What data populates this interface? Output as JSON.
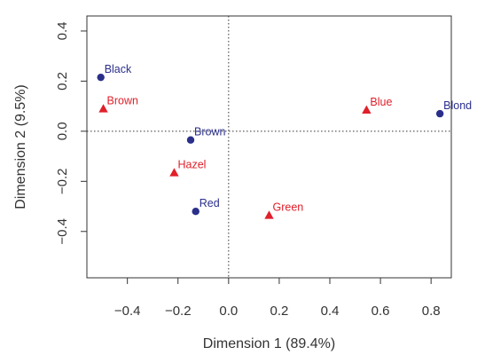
{
  "chart_data": {
    "type": "scatter",
    "xlabel": "Dimension 1 (89.4%)",
    "ylabel": "Dimension 2 (9.5%)",
    "xlim": [
      -0.56,
      0.88
    ],
    "ylim": [
      -0.585,
      0.46
    ],
    "x_ticks": [
      -0.4,
      -0.2,
      0.0,
      0.2,
      0.4,
      0.6,
      0.8
    ],
    "x_tick_labels": [
      "−0.4",
      "−0.2",
      "0.0",
      "0.2",
      "0.4",
      "0.6",
      "0.8"
    ],
    "y_ticks": [
      -0.4,
      -0.2,
      0.0,
      0.2,
      0.4
    ],
    "y_tick_labels": [
      "−0.4",
      "−0.2",
      "0.0",
      "0.2",
      "0.4"
    ],
    "reference_lines": {
      "x": 0,
      "y": 0,
      "style": "dotted"
    },
    "grid": false,
    "series": [
      {
        "color": "#2a2f8a",
        "marker": "circle",
        "points": [
          {
            "label": "Black",
            "x": -0.505,
            "y": 0.215
          },
          {
            "label": "Brown",
            "x": -0.15,
            "y": -0.035
          },
          {
            "label": "Red",
            "x": -0.13,
            "y": -0.32
          },
          {
            "label": "Blond",
            "x": 0.835,
            "y": 0.07
          }
        ]
      },
      {
        "color": "#e0202a",
        "marker": "triangle",
        "points": [
          {
            "label": "Brown",
            "x": -0.495,
            "y": 0.09
          },
          {
            "label": "Hazel",
            "x": -0.215,
            "y": -0.165
          },
          {
            "label": "Green",
            "x": 0.16,
            "y": -0.335
          },
          {
            "label": "Blue",
            "x": 0.545,
            "y": 0.085
          }
        ]
      }
    ]
  }
}
